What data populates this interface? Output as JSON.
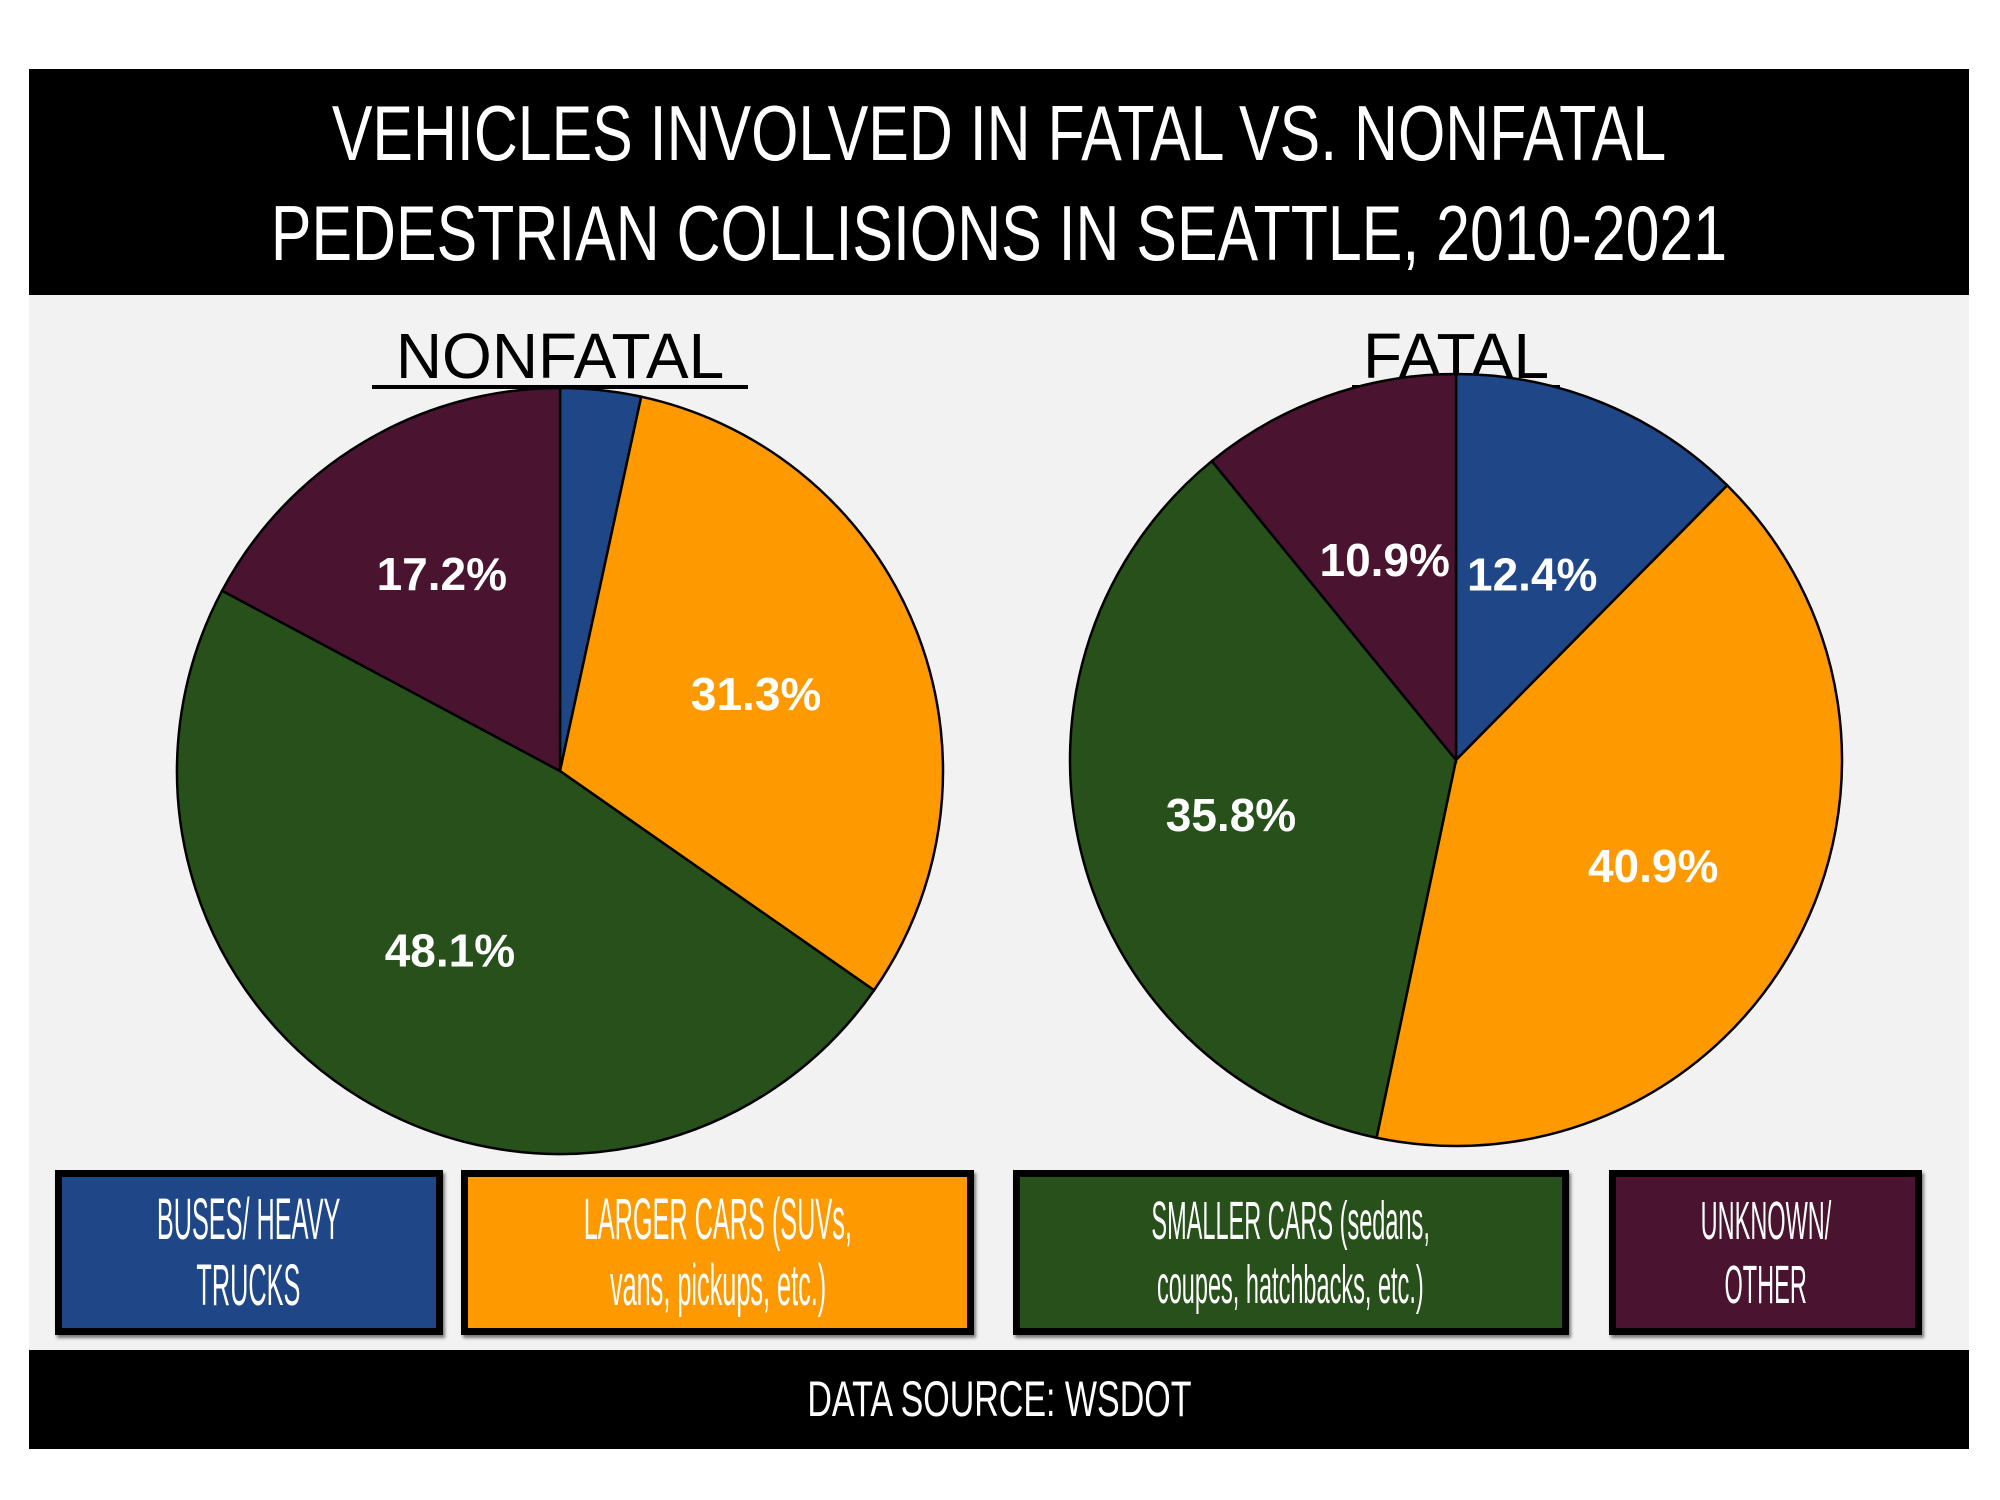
{
  "header": {
    "title_line1": "VEHICLES INVOLVED IN FATAL VS. NONFATAL",
    "title_line2": "PEDESTRIAN COLLISIONS IN SEATTLE, 2010-2021"
  },
  "footer": {
    "source": "DATA SOURCE: WSDOT"
  },
  "legend": [
    {
      "line1": "BUSES/ HEAVY",
      "line2": "TRUCKS",
      "color": "#1f4788"
    },
    {
      "line1": "LARGER CARS (SUVs,",
      "line2": "vans, pickups, etc.)",
      "color": "#ff9900"
    },
    {
      "line1": "SMALLER CARS (sedans,",
      "line2": "coupes, hatchbacks, etc.)",
      "color": "#27501a"
    },
    {
      "line1": "UNKNOWN/",
      "line2": "OTHER",
      "color": "#4a1430"
    }
  ],
  "chart_data": [
    {
      "type": "pie",
      "title": "NONFATAL",
      "categories": [
        "Buses/ Heavy Trucks",
        "Larger Cars",
        "Smaller Cars",
        "Unknown/ Other"
      ],
      "values": [
        3.4,
        31.3,
        48.1,
        17.2
      ],
      "labels": [
        "",
        "31.3%",
        "48.1%",
        "17.2%"
      ],
      "colors": [
        "#1f4788",
        "#ff9900",
        "#27501a",
        "#4a1430"
      ],
      "start": "12 o'clock",
      "direction": "clockwise"
    },
    {
      "type": "pie",
      "title": "FATAL",
      "categories": [
        "Buses/ Heavy Trucks",
        "Larger Cars",
        "Smaller Cars",
        "Unknown/ Other"
      ],
      "values": [
        12.4,
        40.9,
        35.8,
        10.9
      ],
      "labels": [
        "12.4%",
        "40.9%",
        "35.8%",
        "10.9%"
      ],
      "colors": [
        "#1f4788",
        "#ff9900",
        "#27501a",
        "#4a1430"
      ],
      "start": "12 o'clock",
      "direction": "clockwise"
    }
  ]
}
